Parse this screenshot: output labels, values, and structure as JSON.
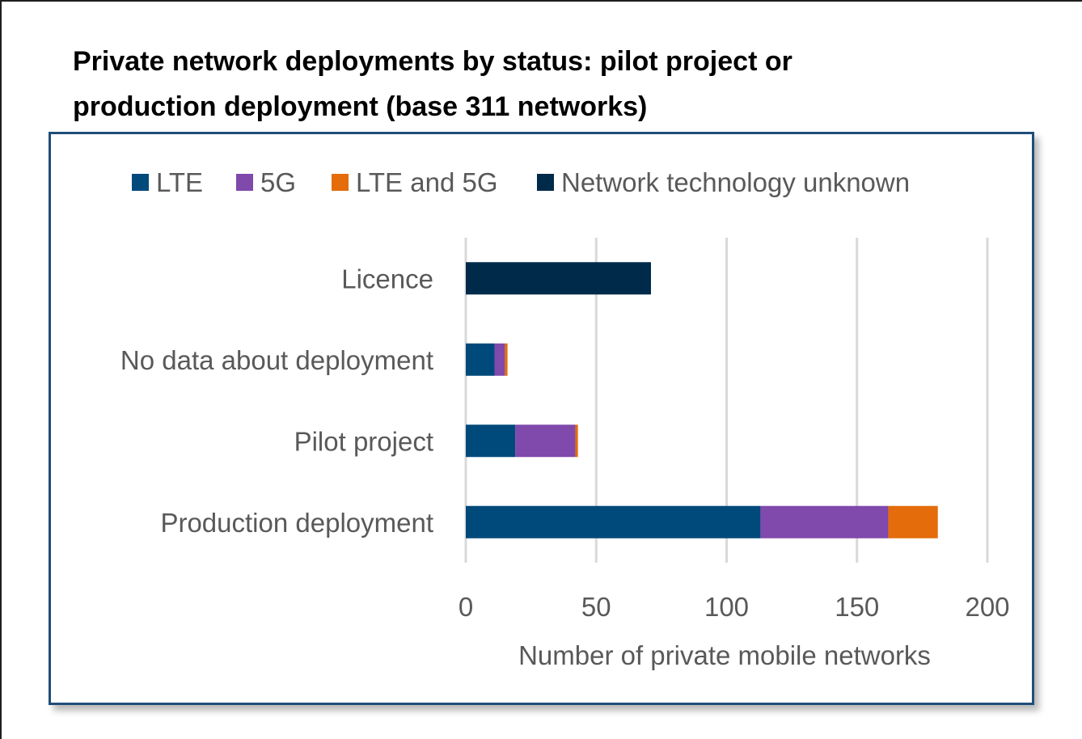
{
  "title_lines": [
    "Private network deployments by status: pilot project or",
    "production deployment (base 311 networks)"
  ],
  "chart_data": {
    "type": "bar",
    "orientation": "horizontal",
    "stacked": true,
    "title": "Private network deployments by status: pilot project or production deployment (base 311 networks)",
    "categories": [
      "Licence",
      "No data about deployment",
      "Pilot project",
      "Production deployment"
    ],
    "series": [
      {
        "name": "LTE",
        "color": "#00497b",
        "values": [
          0,
          11,
          19,
          113
        ]
      },
      {
        "name": "5G",
        "color": "#8049ac",
        "values": [
          0,
          4,
          23,
          49
        ]
      },
      {
        "name": "LTE and 5G",
        "color": "#e46c0a",
        "values": [
          0,
          1,
          1,
          19
        ]
      },
      {
        "name": "Network technology unknown",
        "color": "#002a4a",
        "values": [
          71,
          0,
          0,
          0
        ]
      }
    ],
    "xlabel": "Number of private mobile networks",
    "ylabel": "",
    "xlim": [
      0,
      200
    ],
    "xticks": [
      0,
      50,
      100,
      150,
      200
    ],
    "tick_labels": [
      "0",
      "50",
      "100",
      "150",
      "200"
    ],
    "grid": true,
    "legend_position": "top"
  }
}
